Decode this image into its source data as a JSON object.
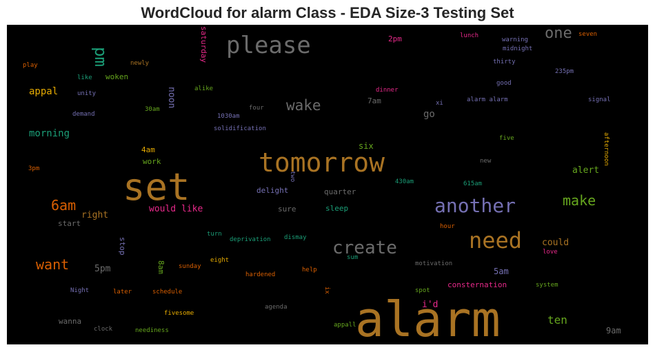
{
  "chart_data": {
    "type": "wordcloud",
    "title": "WordCloud for alarm Class - EDA Size-3 Testing Set",
    "background": "#000000",
    "palette": [
      "#a97323",
      "#6b6b6b",
      "#1b9e77",
      "#d95f02",
      "#7570b3",
      "#e7298a",
      "#66a61e",
      "#e6ab02"
    ],
    "words": [
      {
        "text": "alarm",
        "color": "#a97323"
      },
      {
        "text": "set",
        "color": "#a97323"
      },
      {
        "text": "tomorrow",
        "color": "#a97323"
      },
      {
        "text": "please",
        "color": "#6b6b6b"
      },
      {
        "text": "another",
        "color": "#7570b3"
      },
      {
        "text": "need",
        "color": "#a97323"
      },
      {
        "text": "create",
        "color": "#6b6b6b"
      },
      {
        "text": "wake",
        "color": "#6b6b6b"
      },
      {
        "text": "one",
        "color": "#6b6b6b"
      },
      {
        "text": "make",
        "color": "#66a61e"
      },
      {
        "text": "pm",
        "color": "#1b9e77"
      },
      {
        "text": "6am",
        "color": "#d95f02"
      },
      {
        "text": "want",
        "color": "#d95f02"
      },
      {
        "text": "ten",
        "color": "#66a61e"
      },
      {
        "text": "morning",
        "color": "#1b9e77"
      },
      {
        "text": "appal",
        "color": "#e6ab02"
      },
      {
        "text": "would like",
        "color": "#e7298a"
      },
      {
        "text": "right",
        "color": "#a97323"
      },
      {
        "text": "could",
        "color": "#a97323"
      },
      {
        "text": "alert",
        "color": "#66a61e"
      },
      {
        "text": "go",
        "color": "#6b6b6b"
      },
      {
        "text": "5pm",
        "color": "#6b6b6b"
      },
      {
        "text": "i'd",
        "color": "#e7298a"
      },
      {
        "text": "noon",
        "color": "#7570b3"
      },
      {
        "text": "delight",
        "color": "#7570b3"
      },
      {
        "text": "sleep",
        "color": "#1b9e77"
      },
      {
        "text": "quarter",
        "color": "#6b6b6b"
      },
      {
        "text": "sure",
        "color": "#6b6b6b"
      },
      {
        "text": "4am",
        "color": "#e6ab02"
      },
      {
        "text": "work",
        "color": "#66a61e"
      },
      {
        "text": "six",
        "color": "#66a61e"
      },
      {
        "text": "7am",
        "color": "#6b6b6b"
      },
      {
        "text": "2pm",
        "color": "#e7298a"
      },
      {
        "text": "woken",
        "color": "#66a61e"
      },
      {
        "text": "5am",
        "color": "#7570b3"
      },
      {
        "text": "9am",
        "color": "#6b6b6b"
      },
      {
        "text": "8am",
        "color": "#66a61e"
      },
      {
        "text": "stop",
        "color": "#7570b3"
      },
      {
        "text": "saturday",
        "color": "#e7298a"
      },
      {
        "text": "consternation",
        "color": "#e7298a"
      },
      {
        "text": "wanna",
        "color": "#6b6b6b"
      },
      {
        "text": "start",
        "color": "#6b6b6b"
      },
      {
        "text": "appall",
        "color": "#66a61e"
      },
      {
        "text": "afternoon",
        "color": "#e6ab02"
      },
      {
        "text": "lunch",
        "color": "#e7298a"
      },
      {
        "text": "seven",
        "color": "#d95f02"
      },
      {
        "text": "warning",
        "color": "#7570b3"
      },
      {
        "text": "midnight",
        "color": "#7570b3"
      },
      {
        "text": "thirty",
        "color": "#7570b3"
      },
      {
        "text": "235pm",
        "color": "#7570b3"
      },
      {
        "text": "good",
        "color": "#7570b3"
      },
      {
        "text": "signal",
        "color": "#7570b3"
      },
      {
        "text": "alarm alarm",
        "color": "#7570b3"
      },
      {
        "text": "xi",
        "color": "#7570b3"
      },
      {
        "text": "dinner",
        "color": "#e7298a"
      },
      {
        "text": "play",
        "color": "#d95f02"
      },
      {
        "text": "newly",
        "color": "#a97323"
      },
      {
        "text": "like",
        "color": "#1b9e77"
      },
      {
        "text": "unity",
        "color": "#7570b3"
      },
      {
        "text": "demand",
        "color": "#7570b3"
      },
      {
        "text": "30am",
        "color": "#66a61e"
      },
      {
        "text": "alike",
        "color": "#66a61e"
      },
      {
        "text": "1030am",
        "color": "#7570b3"
      },
      {
        "text": "four",
        "color": "#6b6b6b"
      },
      {
        "text": "solidification",
        "color": "#7570b3"
      },
      {
        "text": "five",
        "color": "#66a61e"
      },
      {
        "text": "new",
        "color": "#6b6b6b"
      },
      {
        "text": "3pm",
        "color": "#d95f02"
      },
      {
        "text": "two",
        "color": "#7570b3"
      },
      {
        "text": "430am",
        "color": "#1b9e77"
      },
      {
        "text": "615am",
        "color": "#1b9e77"
      },
      {
        "text": "hour",
        "color": "#d95f02"
      },
      {
        "text": "turn",
        "color": "#1b9e77"
      },
      {
        "text": "deprivation",
        "color": "#1b9e77"
      },
      {
        "text": "dismay",
        "color": "#1b9e77"
      },
      {
        "text": "sum",
        "color": "#1b9e77"
      },
      {
        "text": "eight",
        "color": "#e6ab02"
      },
      {
        "text": "sunday",
        "color": "#d95f02"
      },
      {
        "text": "hardened",
        "color": "#d95f02"
      },
      {
        "text": "help",
        "color": "#d95f02"
      },
      {
        "text": "motivation",
        "color": "#6b6b6b"
      },
      {
        "text": "love",
        "color": "#e7298a"
      },
      {
        "text": "system",
        "color": "#66a61e"
      },
      {
        "text": "spot",
        "color": "#66a61e"
      },
      {
        "text": "ix",
        "color": "#d95f02"
      },
      {
        "text": "Night",
        "color": "#7570b3"
      },
      {
        "text": "later",
        "color": "#d95f02"
      },
      {
        "text": "schedule",
        "color": "#d95f02"
      },
      {
        "text": "agenda",
        "color": "#6b6b6b"
      },
      {
        "text": "fivesome",
        "color": "#e6ab02"
      },
      {
        "text": "clock",
        "color": "#6b6b6b"
      },
      {
        "text": "neediness",
        "color": "#66a61e"
      }
    ]
  }
}
